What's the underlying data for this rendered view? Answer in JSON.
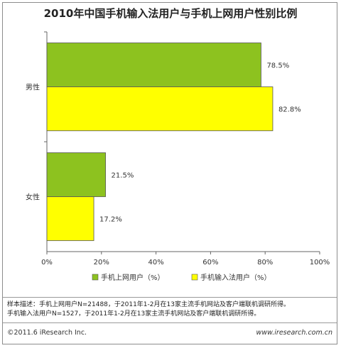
{
  "title": "2010年中国手机输入法用户与手机上网用户性别比例",
  "chart_data": {
    "type": "bar",
    "orientation": "horizontal",
    "categories": [
      "男性",
      "女性"
    ],
    "series": [
      {
        "name": "手机上网用户（%）",
        "values": [
          78.5,
          21.5
        ],
        "color": "#8dc21f"
      },
      {
        "name": "手机输入法用户（%）",
        "values": [
          82.8,
          17.2
        ],
        "color": "#ffff00"
      }
    ],
    "value_labels": [
      [
        "78.5%",
        "21.5%"
      ],
      [
        "82.8%",
        "17.2%"
      ]
    ],
    "xlim": [
      0,
      100
    ],
    "xticks": [
      "0%",
      "20%",
      "40%",
      "60%",
      "80%",
      "100%"
    ],
    "grid": false,
    "legend_position": "bottom"
  },
  "notes": [
    "样本描述：手机上网用户N=21488，于2011年1-2月在13家主流手机网站及客户端联机调研所得。",
    "手机输入法用户N=1527，于2011年1-2月在13家主流手机网站及客户端联机调研所得。"
  ],
  "footer": {
    "copyright": "©2011.6 iResearch Inc.",
    "website": "www.iresearch.com.cn"
  }
}
